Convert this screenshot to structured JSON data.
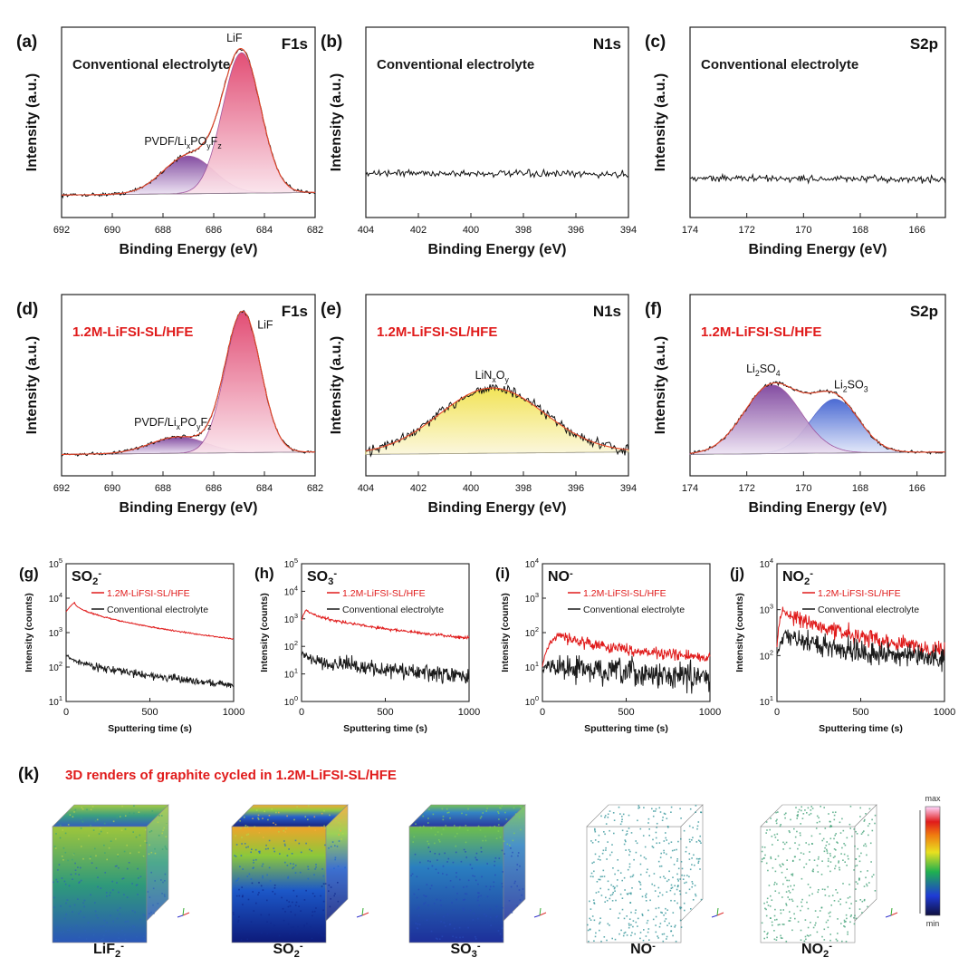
{
  "colors": {
    "red": "#e01b1b",
    "black": "#1a1a1a",
    "axis": "#222222"
  },
  "chart_data": [
    {
      "id": "a",
      "type": "line",
      "panel_label": "(a)",
      "element": "F1s",
      "condition": "Conventional electrolyte",
      "condition_color": "black",
      "xlabel": "Binding Energy (eV)",
      "ylabel": "Intensity (a.u.)",
      "xlim": [
        692,
        682
      ],
      "xticks": [
        "692",
        "690",
        "688",
        "686",
        "684",
        "682"
      ],
      "peaks": [
        {
          "label": "LiF",
          "center": 684.9,
          "height": 0.82,
          "sigma": 0.75,
          "fill": "pink"
        },
        {
          "label": "PVDF/LixPOyFz",
          "center": 687.0,
          "height": 0.22,
          "sigma": 1.0,
          "fill": "purple"
        }
      ]
    },
    {
      "id": "b",
      "type": "line",
      "panel_label": "(b)",
      "element": "N1s",
      "condition": "Conventional electrolyte",
      "condition_color": "black",
      "xlabel": "Binding Energy (eV)",
      "ylabel": "Intensity (a.u.)",
      "xlim": [
        404,
        394
      ],
      "xticks": [
        "404",
        "402",
        "400",
        "398",
        "396",
        "394"
      ],
      "flat_level": 0.15,
      "peaks": []
    },
    {
      "id": "c",
      "type": "line",
      "panel_label": "(c)",
      "element": "S2p",
      "condition": "Conventional electrolyte",
      "condition_color": "black",
      "xlabel": "Binding Energy (eV)",
      "ylabel": "Intensity (a.u.)",
      "xlim": [
        174,
        165
      ],
      "xticks": [
        "174",
        "172",
        "170",
        "168",
        "166"
      ],
      "flat_level": 0.12,
      "peaks": []
    },
    {
      "id": "d",
      "type": "line",
      "panel_label": "(d)",
      "element": "F1s",
      "condition": "1.2M-LiFSI-SL/HFE",
      "condition_color": "red",
      "xlabel": "Binding Energy (eV)",
      "ylabel": "Intensity (a.u.)",
      "xlim": [
        692,
        682
      ],
      "xticks": [
        "692",
        "690",
        "688",
        "686",
        "684",
        "682"
      ],
      "peaks": [
        {
          "label": "LiF",
          "center": 684.85,
          "height": 0.86,
          "sigma": 0.7,
          "fill": "pink"
        },
        {
          "label": "PVDF/LixPOyFz",
          "center": 687.4,
          "height": 0.1,
          "sigma": 1.1,
          "fill": "purple"
        }
      ]
    },
    {
      "id": "e",
      "type": "line",
      "panel_label": "(e)",
      "element": "N1s",
      "condition": "1.2M-LiFSI-SL/HFE",
      "condition_color": "red",
      "xlabel": "Binding Energy (eV)",
      "ylabel": "Intensity (a.u.)",
      "xlim": [
        404,
        394
      ],
      "xticks": [
        "404",
        "402",
        "400",
        "398",
        "396",
        "394"
      ],
      "peaks": [
        {
          "label": "LiNxOy",
          "center": 399.2,
          "height": 0.4,
          "sigma": 2.0,
          "fill": "yellow"
        }
      ]
    },
    {
      "id": "f",
      "type": "line",
      "panel_label": "(f)",
      "element": "S2p",
      "condition": "1.2M-LiFSI-SL/HFE",
      "condition_color": "red",
      "xlabel": "Binding Energy (eV)",
      "ylabel": "Intensity (a.u.)",
      "xlim": [
        174,
        165
      ],
      "xticks": [
        "174",
        "172",
        "170",
        "168",
        "166"
      ],
      "peaks": [
        {
          "label": "Li2SO4",
          "center": 171.1,
          "height": 0.42,
          "sigma": 1.0,
          "fill": "purple"
        },
        {
          "label": "Li2SO3",
          "center": 168.9,
          "height": 0.33,
          "sigma": 0.85,
          "fill": "blue"
        }
      ]
    },
    {
      "id": "g",
      "type": "line",
      "panel_label": "(g)",
      "species": "SO2-",
      "xlabel": "Sputtering time (s)",
      "ylabel": "Intensity (counts)",
      "xlim": [
        0,
        1000
      ],
      "xticks": [
        "0",
        "500",
        "1000"
      ],
      "ylim_exp": [
        1,
        5
      ],
      "yticks": [
        "10^1",
        "10^2",
        "10^3",
        "10^4",
        "10^5"
      ],
      "series": [
        {
          "name": "1.2M-LiFSI-SL/HFE",
          "color": "red",
          "start": 4000,
          "peak_t": 50,
          "peak": 7500,
          "end": 650,
          "noise": 0.01
        },
        {
          "name": "Conventional electrolyte",
          "color": "black",
          "start": 200,
          "peak_t": 10,
          "peak": 220,
          "end": 30,
          "noise": 0.06
        }
      ]
    },
    {
      "id": "h",
      "type": "line",
      "panel_label": "(h)",
      "species": "SO3-",
      "xlabel": "Sputtering time (s)",
      "ylabel": "Intensity (counts)",
      "xlim": [
        0,
        1000
      ],
      "xticks": [
        "0",
        "500",
        "1000"
      ],
      "ylim_exp": [
        0,
        5
      ],
      "yticks": [
        "10^0",
        "10^1",
        "10^2",
        "10^3",
        "10^4",
        "10^5"
      ],
      "series": [
        {
          "name": "1.2M-LiFSI-SL/HFE",
          "color": "red",
          "start": 900,
          "peak_t": 30,
          "peak": 2200,
          "end": 200,
          "noise": 0.03
        },
        {
          "name": "Conventional electrolyte",
          "color": "black",
          "start": 55,
          "peak_t": 15,
          "peak": 50,
          "end": 8,
          "noise": 0.16
        }
      ]
    },
    {
      "id": "i",
      "type": "line",
      "panel_label": "(i)",
      "species": "NO-",
      "xlabel": "Sputtering time (s)",
      "ylabel": "Intensity (counts)",
      "xlim": [
        0,
        1000
      ],
      "xticks": [
        "0",
        "500",
        "1000"
      ],
      "ylim_exp": [
        0,
        4
      ],
      "yticks": [
        "10^0",
        "10^1",
        "10^2",
        "10^3",
        "10^4"
      ],
      "series": [
        {
          "name": "1.2M-LiFSI-SL/HFE",
          "color": "red",
          "start": 10,
          "peak_t": 110,
          "peak": 95,
          "end": 18,
          "noise": 0.09
        },
        {
          "name": "Conventional electrolyte",
          "color": "black",
          "start": 8,
          "peak_t": 60,
          "peak": 12,
          "end": 5,
          "noise": 0.22
        }
      ]
    },
    {
      "id": "j",
      "type": "line",
      "panel_label": "(j)",
      "species": "NO2-",
      "xlabel": "Sputtering time (s)",
      "ylabel": "Intensity (counts)",
      "xlim": [
        0,
        1000
      ],
      "xticks": [
        "0",
        "500",
        "1000"
      ],
      "ylim_exp": [
        1,
        4
      ],
      "yticks": [
        "10^1",
        "10^2",
        "10^3",
        "10^4"
      ],
      "series": [
        {
          "name": "1.2M-LiFSI-SL/HFE",
          "color": "red",
          "start": 150,
          "peak_t": 40,
          "peak": 1100,
          "end": 130,
          "noise": 0.1
        },
        {
          "name": "Conventional electrolyte",
          "color": "black",
          "start": 100,
          "peak_t": 50,
          "peak": 300,
          "end": 80,
          "noise": 0.14
        }
      ]
    }
  ],
  "renders": {
    "panel_label": "(k)",
    "title": "3D renders of graphite cycled in 1.2M-LiFSI-SL/HFE",
    "colorbar": {
      "max_label": "max",
      "min_label": "min"
    },
    "cubes": [
      {
        "label": "LiF2-",
        "style": "dense-green"
      },
      {
        "label": "SO2-",
        "style": "dense-hot"
      },
      {
        "label": "SO3-",
        "style": "dense-blue"
      },
      {
        "label": "NO-",
        "style": "sparse-teal"
      },
      {
        "label": "NO2-",
        "style": "sparse-green"
      }
    ]
  }
}
